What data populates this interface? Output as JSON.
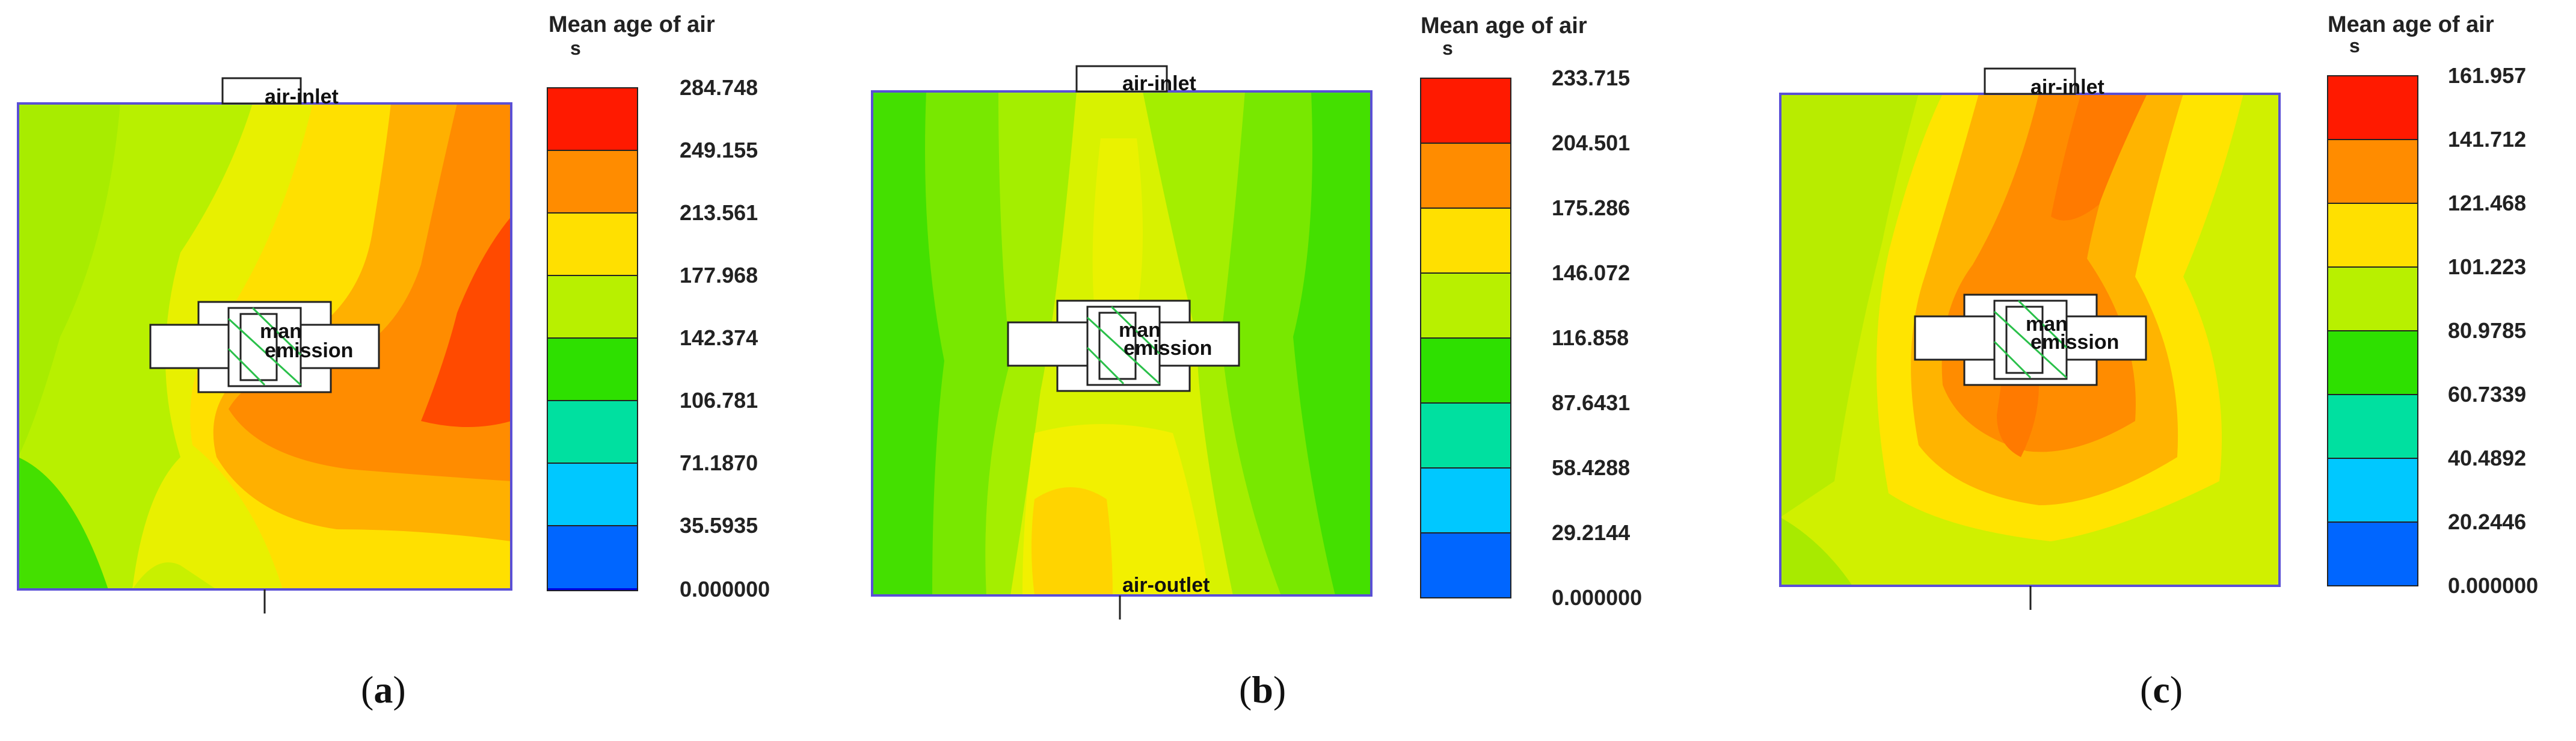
{
  "panels": [
    {
      "id": "a",
      "caption_letter": "a",
      "legend_title": "Mean age of air",
      "legend_unit": "s",
      "legend_ticks": [
        "284.748",
        "249.155",
        "213.561",
        "177.968",
        "142.374",
        "106.781",
        "71.1870",
        "35.5935",
        "0.000000"
      ],
      "labels": {
        "inlet": "air-inlet",
        "outlet": "",
        "person": "man",
        "source": "emission"
      }
    },
    {
      "id": "b",
      "caption_letter": "b",
      "legend_title": "Mean age of air",
      "legend_unit": "s",
      "legend_ticks": [
        "233.715",
        "204.501",
        "175.286",
        "146.072",
        "116.858",
        "87.6431",
        "58.4288",
        "29.2144",
        "0.000000"
      ],
      "labels": {
        "inlet": "air-inlet",
        "outlet": "air-outlet",
        "person": "man",
        "source": "emission"
      }
    },
    {
      "id": "c",
      "caption_letter": "c",
      "legend_title": "Mean age of air",
      "legend_unit": "s",
      "legend_ticks": [
        "161.957",
        "141.712",
        "121.468",
        "101.223",
        "80.9785",
        "60.7339",
        "40.4892",
        "20.2446",
        "0.000000"
      ],
      "labels": {
        "inlet": "air-inlet",
        "outlet": "",
        "person": "man",
        "source": "emission"
      }
    }
  ],
  "colorscale": [
    "#ff1a00",
    "#ff8c00",
    "#ffe000",
    "#b8f000",
    "#2ee000",
    "#00e0a0",
    "#00c8ff",
    "#0066ff",
    "#0000e0"
  ]
}
